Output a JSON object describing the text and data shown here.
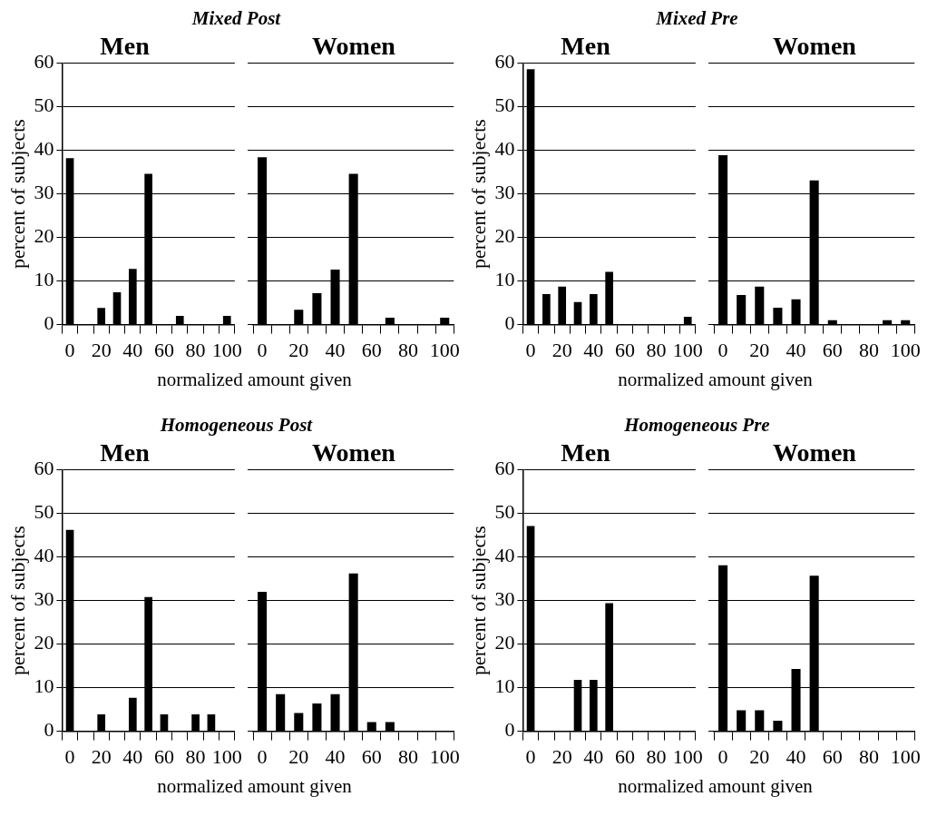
{
  "chart_data": [
    {
      "type": "bar",
      "title": "Mixed Post",
      "subtitle": "Men",
      "xlabel": "normalized amount given",
      "ylabel": "percent of subjects",
      "categories": [
        "0",
        null,
        "20",
        null,
        "40",
        null,
        "60",
        null,
        "80",
        null,
        "100"
      ],
      "color": "#000000",
      "values": [
        38.2,
        0,
        3.8,
        7.4,
        12.8,
        34.6,
        0,
        2,
        0,
        0,
        2
      ],
      "ylim": [
        0,
        60
      ],
      "yticks": [
        0,
        10,
        20,
        30,
        40,
        50,
        60
      ],
      "grid": "y"
    },
    {
      "type": "bar",
      "subtitle": "Women",
      "categories": [
        "0",
        null,
        "20",
        null,
        "40",
        null,
        "60",
        null,
        "80",
        null,
        "100"
      ],
      "color": "#000000",
      "values": [
        38.4,
        0,
        3.4,
        7.2,
        12.6,
        34.6,
        0,
        1.6,
        0,
        0,
        1.6
      ],
      "ylim": [
        0,
        60
      ],
      "yticks": [
        0,
        10,
        20,
        30,
        40,
        50,
        60
      ],
      "grid": "y",
      "tick_labels": "x"
    },
    {
      "type": "bar",
      "title": "Mixed Pre",
      "subtitle": "Men",
      "xlabel": "normalized amount given",
      "ylabel": "percent of subjects",
      "categories": [
        "0",
        null,
        "20",
        null,
        "40",
        null,
        "60",
        null,
        "80",
        null,
        "100"
      ],
      "color": "#000000",
      "values": [
        58.6,
        7,
        8.7,
        5.2,
        7,
        12.1,
        0,
        0,
        0,
        0,
        1.8
      ],
      "ylim": [
        0,
        60
      ],
      "yticks": [
        0,
        10,
        20,
        30,
        40,
        50,
        60
      ],
      "grid": "y"
    },
    {
      "type": "bar",
      "subtitle": "Women",
      "categories": [
        "0",
        null,
        "20",
        null,
        "40",
        null,
        "60",
        null,
        "80",
        null,
        "100"
      ],
      "color": "#000000",
      "values": [
        38.9,
        6.8,
        8.7,
        3.9,
        5.8,
        33.1,
        1,
        0,
        0,
        1,
        1
      ],
      "ylim": [
        0,
        60
      ],
      "yticks": [
        0,
        10,
        20,
        30,
        40,
        50,
        60
      ],
      "grid": "y",
      "tick_labels": "x"
    },
    {
      "type": "bar",
      "title": "Homogeneous Post",
      "subtitle": "Men",
      "xlabel": "normalized amount given",
      "ylabel": "percent of subjects",
      "categories": [
        "0",
        null,
        "20",
        null,
        "40",
        null,
        "60",
        null,
        "80",
        null,
        "100"
      ],
      "color": "#000000",
      "values": [
        46.2,
        0,
        3.9,
        0,
        7.7,
        30.8,
        3.9,
        0,
        3.9,
        3.9,
        0
      ],
      "ylim": [
        0,
        60
      ],
      "yticks": [
        0,
        10,
        20,
        30,
        40,
        50,
        60
      ],
      "grid": "y"
    },
    {
      "type": "bar",
      "subtitle": "Women",
      "categories": [
        "0",
        null,
        "20",
        null,
        "40",
        null,
        "60",
        null,
        "80",
        null,
        "100"
      ],
      "color": "#000000",
      "values": [
        32,
        8.5,
        4.2,
        6.4,
        8.5,
        36.2,
        2.1,
        2.1,
        0,
        0,
        0
      ],
      "ylim": [
        0,
        60
      ],
      "yticks": [
        0,
        10,
        20,
        30,
        40,
        50,
        60
      ],
      "grid": "y",
      "tick_labels": "x"
    },
    {
      "type": "bar",
      "title": "Homogeneous Pre",
      "subtitle": "Men",
      "xlabel": "normalized amount given",
      "ylabel": "percent of subjects",
      "categories": [
        "0",
        null,
        "20",
        null,
        "40",
        null,
        "60",
        null,
        "80",
        null,
        "100"
      ],
      "color": "#000000",
      "values": [
        47.1,
        0,
        0,
        11.8,
        11.8,
        29.4,
        0,
        0,
        0,
        0,
        0
      ],
      "ylim": [
        0,
        60
      ],
      "yticks": [
        0,
        10,
        20,
        30,
        40,
        50,
        60
      ],
      "grid": "y"
    },
    {
      "type": "bar",
      "subtitle": "Women",
      "categories": [
        "0",
        null,
        "20",
        null,
        "40",
        null,
        "60",
        null,
        "80",
        null,
        "100"
      ],
      "color": "#000000",
      "values": [
        38.1,
        4.8,
        4.8,
        2.4,
        14.3,
        35.7,
        0,
        0,
        0,
        0,
        0
      ],
      "ylim": [
        0,
        60
      ],
      "yticks": [
        0,
        10,
        20,
        30,
        40,
        50,
        60
      ],
      "grid": "y",
      "tick_labels": "x"
    }
  ]
}
